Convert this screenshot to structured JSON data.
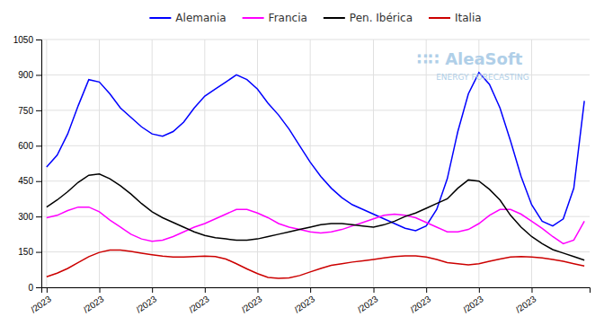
{
  "chart_data": {
    "type": "line",
    "categories": [
      "/2023",
      null,
      null,
      null,
      null,
      "/2023",
      null,
      null,
      null,
      null,
      "/2023",
      null,
      null,
      null,
      null,
      "/2023",
      null,
      null,
      null,
      null,
      "/2023",
      null,
      null,
      null,
      null,
      "/2023",
      null,
      null,
      null,
      null,
      null,
      "/2023",
      null,
      null,
      null,
      null,
      "/2023",
      null,
      null,
      null,
      null,
      "/2023",
      null,
      null,
      null,
      null,
      "/2023",
      null,
      null,
      null,
      null,
      null
    ],
    "series": [
      {
        "name": "Alemania",
        "color": "#0000ff",
        "values": [
          510,
          560,
          650,
          770,
          880,
          870,
          820,
          760,
          720,
          680,
          650,
          640,
          660,
          700,
          760,
          810,
          840,
          870,
          900,
          880,
          840,
          780,
          730,
          670,
          600,
          530,
          470,
          420,
          380,
          350,
          330,
          310,
          290,
          270,
          250,
          240,
          260,
          330,
          460,
          660,
          820,
          910,
          860,
          760,
          620,
          470,
          350,
          280,
          260,
          290,
          420,
          790
        ]
      },
      {
        "name": "Francia",
        "color": "#ff00ff",
        "values": [
          295,
          305,
          325,
          340,
          340,
          320,
          285,
          255,
          225,
          205,
          195,
          200,
          215,
          235,
          255,
          270,
          290,
          310,
          330,
          330,
          315,
          295,
          270,
          255,
          245,
          235,
          230,
          235,
          245,
          260,
          275,
          290,
          305,
          310,
          305,
          295,
          275,
          255,
          235,
          235,
          245,
          270,
          305,
          330,
          330,
          310,
          280,
          250,
          215,
          185,
          200,
          280
        ]
      },
      {
        "name": "Pen. Ibérica",
        "color": "#000000",
        "values": [
          340,
          370,
          405,
          445,
          475,
          480,
          460,
          430,
          395,
          355,
          320,
          295,
          275,
          255,
          235,
          220,
          210,
          205,
          200,
          200,
          205,
          215,
          225,
          235,
          245,
          255,
          265,
          270,
          270,
          265,
          260,
          255,
          265,
          280,
          300,
          315,
          335,
          355,
          375,
          420,
          455,
          450,
          415,
          370,
          305,
          255,
          215,
          185,
          160,
          145,
          130,
          115
        ]
      },
      {
        "name": "Italia",
        "color": "#cc0000",
        "values": [
          45,
          60,
          80,
          105,
          130,
          148,
          158,
          158,
          152,
          145,
          138,
          132,
          128,
          128,
          130,
          132,
          130,
          120,
          100,
          78,
          58,
          42,
          38,
          40,
          50,
          65,
          80,
          93,
          100,
          107,
          112,
          118,
          125,
          130,
          133,
          133,
          128,
          118,
          105,
          100,
          95,
          100,
          110,
          120,
          128,
          130,
          128,
          125,
          118,
          110,
          100,
          90
        ]
      }
    ],
    "ylim": [
      0,
      1050
    ],
    "yticks": [
      0,
      150,
      300,
      450,
      600,
      750,
      900,
      1050
    ],
    "grid": true,
    "legend": "top",
    "annotations": [
      "∷∷ AleaSoft",
      "ENERGY FORECASTING"
    ]
  }
}
